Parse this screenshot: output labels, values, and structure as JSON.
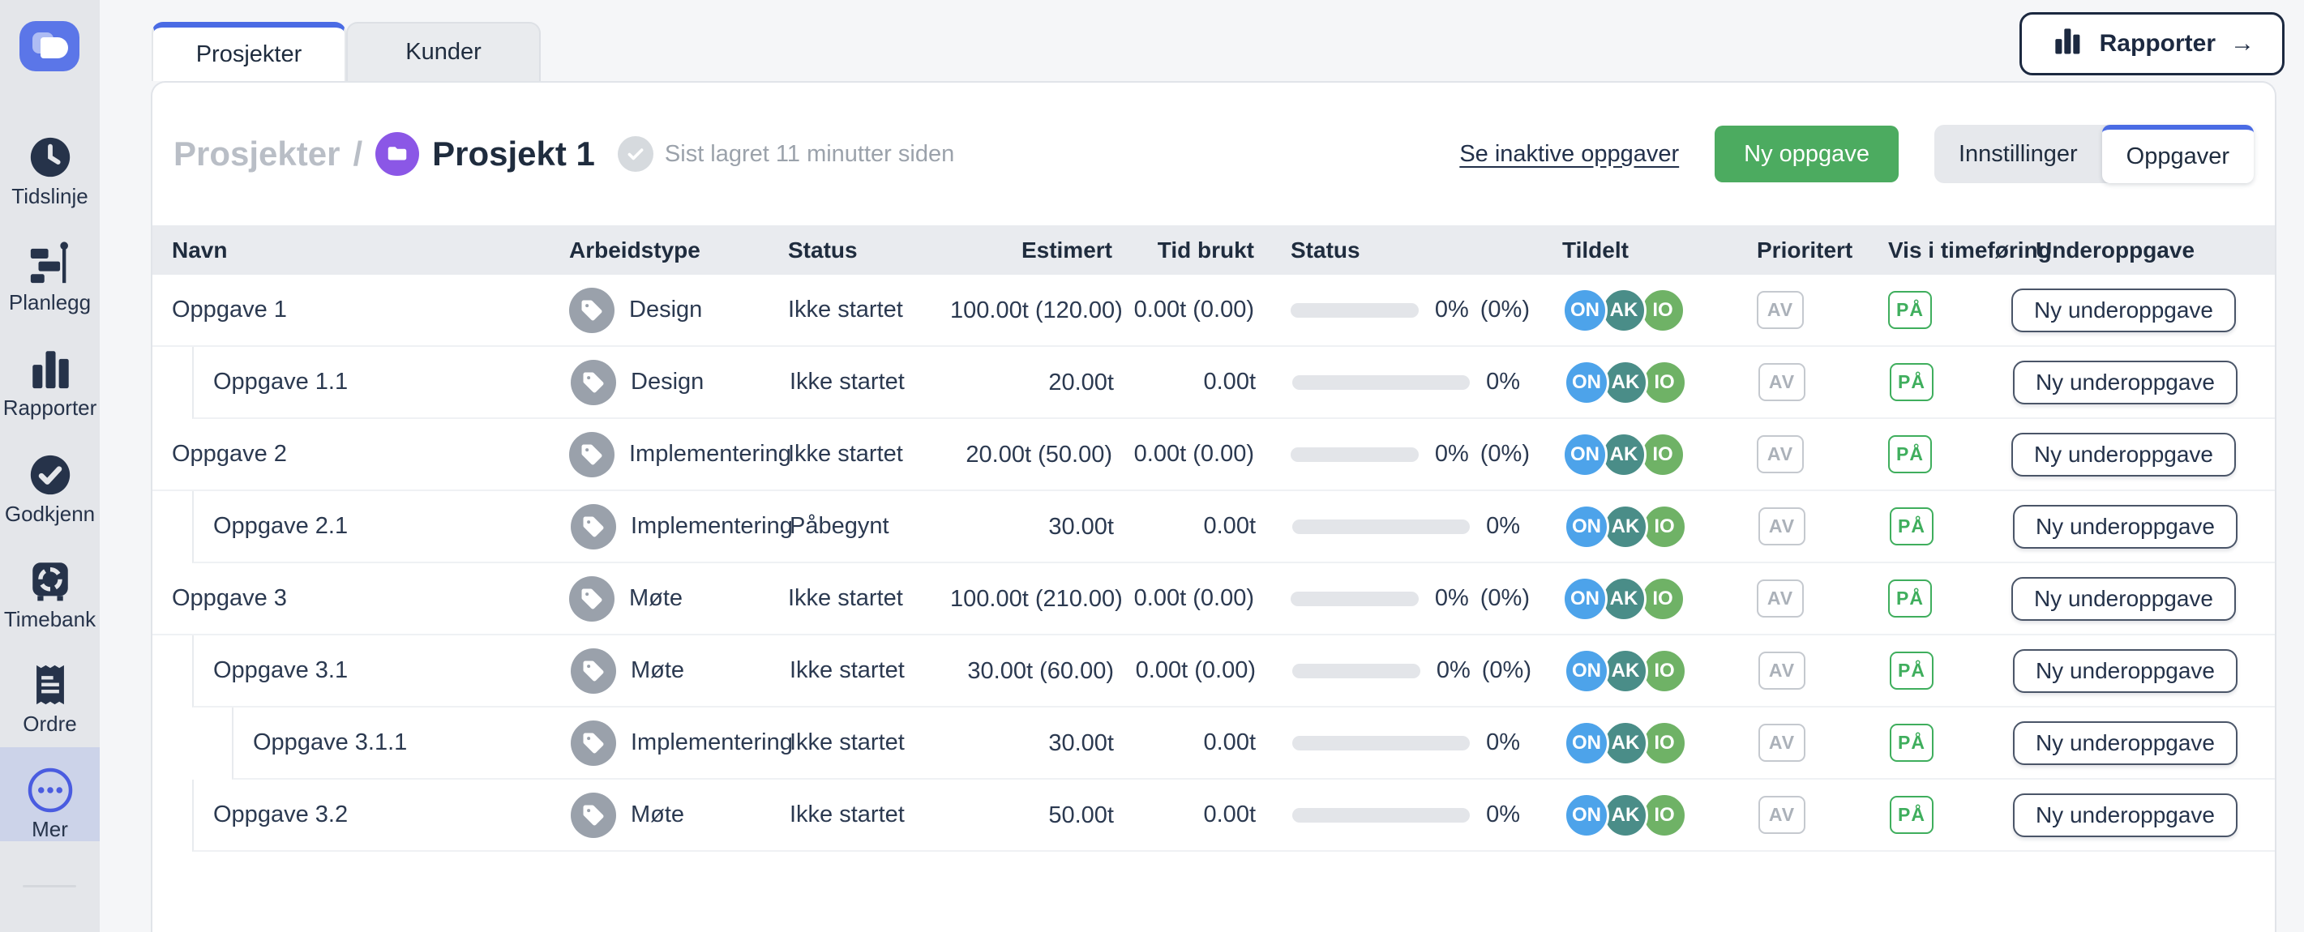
{
  "sidebar": {
    "items": [
      {
        "label": "Tidslinje",
        "icon": "clock-icon"
      },
      {
        "label": "Planlegg",
        "icon": "gantt-icon"
      },
      {
        "label": "Rapporter",
        "icon": "bar-chart-icon"
      },
      {
        "label": "Godkjenn",
        "icon": "check-circle-icon"
      },
      {
        "label": "Timebank",
        "icon": "safe-icon"
      },
      {
        "label": "Ordre",
        "icon": "receipt-icon"
      },
      {
        "label": "Mer",
        "icon": "more-dots-icon",
        "active": true
      }
    ]
  },
  "tabs": [
    {
      "label": "Prosjekter",
      "active": true
    },
    {
      "label": "Kunder",
      "active": false
    }
  ],
  "reports_button": {
    "label": "Rapporter",
    "arrow": "→"
  },
  "header": {
    "breadcrumb_root": "Prosjekter",
    "breadcrumb_separator": "/",
    "project_title": "Prosjekt 1",
    "saved_status": "Sist lagret 11 minutter siden",
    "inactive_tasks_link": "Se inaktive oppgaver",
    "new_task_button": "Ny oppgave",
    "view_toggle": {
      "settings": "Innstillinger",
      "tasks": "Oppgaver",
      "active": "Oppgaver"
    }
  },
  "table": {
    "columns": [
      "Navn",
      "Arbeidstype",
      "Status",
      "Estimert",
      "Tid brukt",
      "Status",
      "Tildelt",
      "Prioritert",
      "Vis i timeføring",
      "Underoppgave"
    ],
    "assignees": [
      {
        "initials": "ON",
        "color": "#4da3ea"
      },
      {
        "initials": "AK",
        "color": "#4a8d88"
      },
      {
        "initials": "IO",
        "color": "#6fb266"
      }
    ],
    "rows": [
      {
        "name": "Oppgave 1",
        "indent": 0,
        "worktype": "Design",
        "status": "Ikke startet",
        "estimate_line1": "100.00t",
        "estimate_line2": "(120.00)",
        "time_spent": "0.00t (0.00)",
        "progress": "0%",
        "progress_paren": "(0%)",
        "prioritized": "AV",
        "show_in_timesheet": "PÅ",
        "subtask_button": "Ny underoppgave"
      },
      {
        "name": "Oppgave 1.1",
        "indent": 1,
        "worktype": "Design",
        "status": "Ikke startet",
        "estimate_line1": "20.00t",
        "estimate_line2": "",
        "time_spent": "0.00t",
        "progress": "0%",
        "progress_paren": "",
        "prioritized": "AV",
        "show_in_timesheet": "PÅ",
        "subtask_button": "Ny underoppgave"
      },
      {
        "name": "Oppgave 2",
        "indent": 0,
        "worktype": "Implementering",
        "status": "Ikke startet",
        "estimate_line1": "20.00t (50.00)",
        "estimate_line2": "",
        "time_spent": "0.00t (0.00)",
        "progress": "0%",
        "progress_paren": "(0%)",
        "prioritized": "AV",
        "show_in_timesheet": "PÅ",
        "subtask_button": "Ny underoppgave"
      },
      {
        "name": "Oppgave 2.1",
        "indent": 1,
        "worktype": "Implementering",
        "status": "Påbegynt",
        "estimate_line1": "30.00t",
        "estimate_line2": "",
        "time_spent": "0.00t",
        "progress": "0%",
        "progress_paren": "",
        "prioritized": "AV",
        "show_in_timesheet": "PÅ",
        "subtask_button": "Ny underoppgave"
      },
      {
        "name": "Oppgave 3",
        "indent": 0,
        "worktype": "Møte",
        "status": "Ikke startet",
        "estimate_line1": "100.00t",
        "estimate_line2": "(210.00)",
        "time_spent": "0.00t (0.00)",
        "progress": "0%",
        "progress_paren": "(0%)",
        "prioritized": "AV",
        "show_in_timesheet": "PÅ",
        "subtask_button": "Ny underoppgave"
      },
      {
        "name": "Oppgave 3.1",
        "indent": 1,
        "worktype": "Møte",
        "status": "Ikke startet",
        "estimate_line1": "30.00t (60.00)",
        "estimate_line2": "",
        "time_spent": "0.00t (0.00)",
        "progress": "0%",
        "progress_paren": "(0%)",
        "prioritized": "AV",
        "show_in_timesheet": "PÅ",
        "subtask_button": "Ny underoppgave"
      },
      {
        "name": "Oppgave 3.1.1",
        "indent": 2,
        "worktype": "Implementering",
        "status": "Ikke startet",
        "estimate_line1": "30.00t",
        "estimate_line2": "",
        "time_spent": "0.00t",
        "progress": "0%",
        "progress_paren": "",
        "prioritized": "AV",
        "show_in_timesheet": "PÅ",
        "subtask_button": "Ny underoppgave"
      },
      {
        "name": "Oppgave 3.2",
        "indent": 1,
        "worktype": "Møte",
        "status": "Ikke startet",
        "estimate_line1": "50.00t",
        "estimate_line2": "",
        "time_spent": "0.00t",
        "progress": "0%",
        "progress_paren": "",
        "prioritized": "AV",
        "show_in_timesheet": "PÅ",
        "subtask_button": "Ny underoppgave"
      }
    ]
  },
  "colors": {
    "accent_blue": "#4a6be4",
    "logo_blue": "#5b76e8",
    "sidebar_active": "#ccd3e9",
    "green_button": "#4cab60",
    "badge_green": "#3fae5d",
    "project_purple": "#8b57e6",
    "avatar_blue": "#4da3ea",
    "avatar_teal": "#4a8d88",
    "avatar_green": "#6fb266",
    "text_dark": "#1f2c3e",
    "muted_gray": "#9ba2ab"
  }
}
